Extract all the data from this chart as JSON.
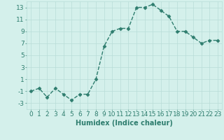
{
  "x": [
    0,
    1,
    2,
    3,
    4,
    5,
    6,
    7,
    8,
    9,
    10,
    11,
    12,
    13,
    14,
    15,
    16,
    17,
    18,
    19,
    20,
    21,
    22,
    23
  ],
  "y": [
    -1,
    -0.5,
    -2,
    -0.5,
    -1.5,
    -2.5,
    -1.5,
    -1.5,
    1,
    6.5,
    9,
    9.5,
    9.5,
    13,
    13,
    13.5,
    12.5,
    11.5,
    9,
    9,
    8,
    7,
    7.5,
    7.5
  ],
  "line_color": "#2e7d6e",
  "marker": "D",
  "marker_size": 2.5,
  "bg_color": "#d4f0eb",
  "grid_color": "#b8ddd7",
  "xlabel": "Humidex (Indice chaleur)",
  "ylim": [
    -4,
    14
  ],
  "xlim": [
    -0.5,
    23.5
  ],
  "yticks": [
    -3,
    -1,
    1,
    3,
    5,
    7,
    9,
    11,
    13
  ],
  "xticks": [
    0,
    1,
    2,
    3,
    4,
    5,
    6,
    7,
    8,
    9,
    10,
    11,
    12,
    13,
    14,
    15,
    16,
    17,
    18,
    19,
    20,
    21,
    22,
    23
  ],
  "font_color": "#2e7d6e",
  "xlabel_fontsize": 7,
  "tick_fontsize": 6.5,
  "linewidth": 1.0
}
